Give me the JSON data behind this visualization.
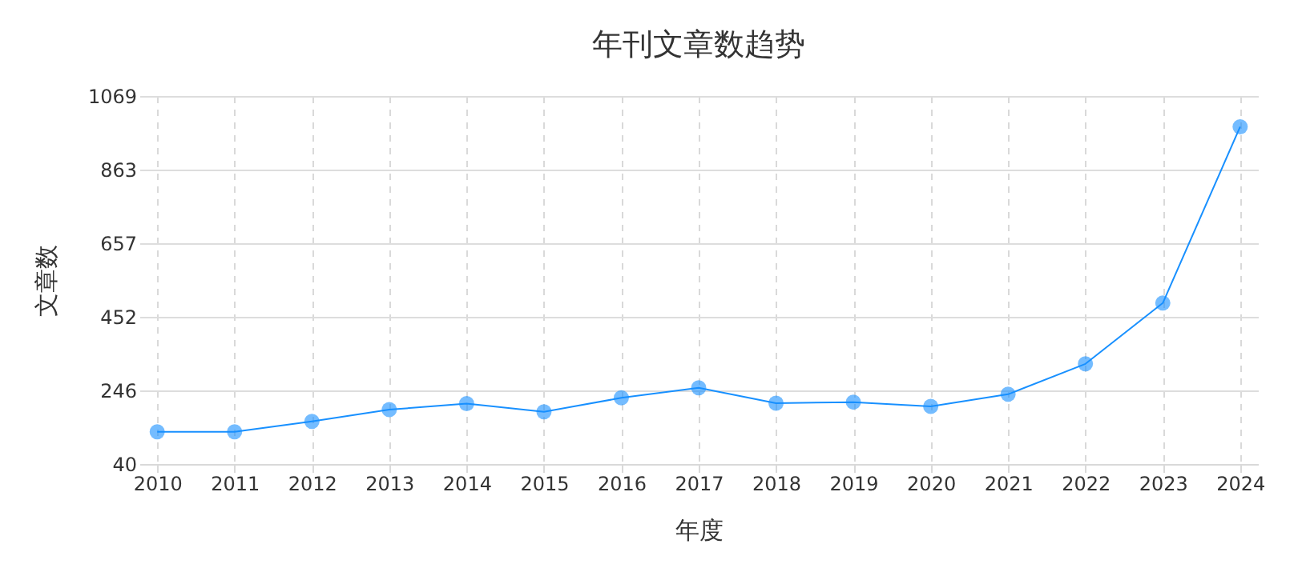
{
  "chart_data": {
    "type": "line",
    "title": "年刊文章数趋势",
    "xlabel": "年度",
    "ylabel": "文章数",
    "categories": [
      "2010",
      "2011",
      "2012",
      "2013",
      "2014",
      "2015",
      "2016",
      "2017",
      "2018",
      "2019",
      "2020",
      "2021",
      "2022",
      "2023",
      "2024"
    ],
    "series": [
      {
        "color": "#1890ff",
        "values": [
          130,
          130,
          159,
          192,
          209,
          186,
          225,
          253,
          210,
          213,
          201,
          235,
          320,
          490,
          983
        ]
      }
    ],
    "ylim": [
      40,
      1069
    ],
    "yticks": [
      40,
      246,
      452,
      657,
      863,
      1069
    ],
    "grid": true,
    "marker": "circle"
  }
}
